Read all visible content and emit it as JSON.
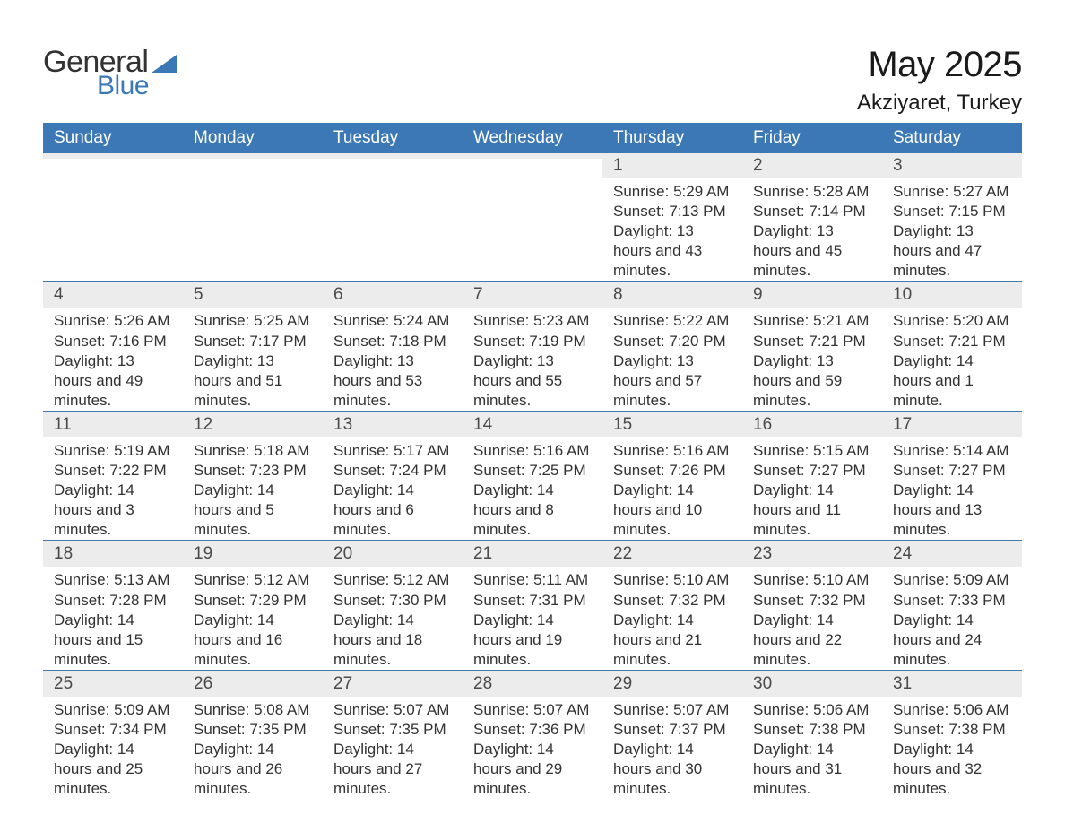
{
  "logo": {
    "word1": "General",
    "word2": "Blue"
  },
  "header": {
    "title": "May 2025",
    "location": "Akziyaret, Turkey"
  },
  "colors": {
    "header_bg": "#3b78b5",
    "row_border": "#4179b0",
    "daynum_bg": "#ececec",
    "text": "#323232"
  },
  "weekdays": [
    "Sunday",
    "Monday",
    "Tuesday",
    "Wednesday",
    "Thursday",
    "Friday",
    "Saturday"
  ],
  "weeks": [
    [
      {
        "n": "",
        "s": "",
        "t": "",
        "d": ""
      },
      {
        "n": "",
        "s": "",
        "t": "",
        "d": ""
      },
      {
        "n": "",
        "s": "",
        "t": "",
        "d": ""
      },
      {
        "n": "",
        "s": "",
        "t": "",
        "d": ""
      },
      {
        "n": "1",
        "s": "Sunrise: 5:29 AM",
        "t": "Sunset: 7:13 PM",
        "d": "Daylight: 13 hours and 43 minutes."
      },
      {
        "n": "2",
        "s": "Sunrise: 5:28 AM",
        "t": "Sunset: 7:14 PM",
        "d": "Daylight: 13 hours and 45 minutes."
      },
      {
        "n": "3",
        "s": "Sunrise: 5:27 AM",
        "t": "Sunset: 7:15 PM",
        "d": "Daylight: 13 hours and 47 minutes."
      }
    ],
    [
      {
        "n": "4",
        "s": "Sunrise: 5:26 AM",
        "t": "Sunset: 7:16 PM",
        "d": "Daylight: 13 hours and 49 minutes."
      },
      {
        "n": "5",
        "s": "Sunrise: 5:25 AM",
        "t": "Sunset: 7:17 PM",
        "d": "Daylight: 13 hours and 51 minutes."
      },
      {
        "n": "6",
        "s": "Sunrise: 5:24 AM",
        "t": "Sunset: 7:18 PM",
        "d": "Daylight: 13 hours and 53 minutes."
      },
      {
        "n": "7",
        "s": "Sunrise: 5:23 AM",
        "t": "Sunset: 7:19 PM",
        "d": "Daylight: 13 hours and 55 minutes."
      },
      {
        "n": "8",
        "s": "Sunrise: 5:22 AM",
        "t": "Sunset: 7:20 PM",
        "d": "Daylight: 13 hours and 57 minutes."
      },
      {
        "n": "9",
        "s": "Sunrise: 5:21 AM",
        "t": "Sunset: 7:21 PM",
        "d": "Daylight: 13 hours and 59 minutes."
      },
      {
        "n": "10",
        "s": "Sunrise: 5:20 AM",
        "t": "Sunset: 7:21 PM",
        "d": "Daylight: 14 hours and 1 minute."
      }
    ],
    [
      {
        "n": "11",
        "s": "Sunrise: 5:19 AM",
        "t": "Sunset: 7:22 PM",
        "d": "Daylight: 14 hours and 3 minutes."
      },
      {
        "n": "12",
        "s": "Sunrise: 5:18 AM",
        "t": "Sunset: 7:23 PM",
        "d": "Daylight: 14 hours and 5 minutes."
      },
      {
        "n": "13",
        "s": "Sunrise: 5:17 AM",
        "t": "Sunset: 7:24 PM",
        "d": "Daylight: 14 hours and 6 minutes."
      },
      {
        "n": "14",
        "s": "Sunrise: 5:16 AM",
        "t": "Sunset: 7:25 PM",
        "d": "Daylight: 14 hours and 8 minutes."
      },
      {
        "n": "15",
        "s": "Sunrise: 5:16 AM",
        "t": "Sunset: 7:26 PM",
        "d": "Daylight: 14 hours and 10 minutes."
      },
      {
        "n": "16",
        "s": "Sunrise: 5:15 AM",
        "t": "Sunset: 7:27 PM",
        "d": "Daylight: 14 hours and 11 minutes."
      },
      {
        "n": "17",
        "s": "Sunrise: 5:14 AM",
        "t": "Sunset: 7:27 PM",
        "d": "Daylight: 14 hours and 13 minutes."
      }
    ],
    [
      {
        "n": "18",
        "s": "Sunrise: 5:13 AM",
        "t": "Sunset: 7:28 PM",
        "d": "Daylight: 14 hours and 15 minutes."
      },
      {
        "n": "19",
        "s": "Sunrise: 5:12 AM",
        "t": "Sunset: 7:29 PM",
        "d": "Daylight: 14 hours and 16 minutes."
      },
      {
        "n": "20",
        "s": "Sunrise: 5:12 AM",
        "t": "Sunset: 7:30 PM",
        "d": "Daylight: 14 hours and 18 minutes."
      },
      {
        "n": "21",
        "s": "Sunrise: 5:11 AM",
        "t": "Sunset: 7:31 PM",
        "d": "Daylight: 14 hours and 19 minutes."
      },
      {
        "n": "22",
        "s": "Sunrise: 5:10 AM",
        "t": "Sunset: 7:32 PM",
        "d": "Daylight: 14 hours and 21 minutes."
      },
      {
        "n": "23",
        "s": "Sunrise: 5:10 AM",
        "t": "Sunset: 7:32 PM",
        "d": "Daylight: 14 hours and 22 minutes."
      },
      {
        "n": "24",
        "s": "Sunrise: 5:09 AM",
        "t": "Sunset: 7:33 PM",
        "d": "Daylight: 14 hours and 24 minutes."
      }
    ],
    [
      {
        "n": "25",
        "s": "Sunrise: 5:09 AM",
        "t": "Sunset: 7:34 PM",
        "d": "Daylight: 14 hours and 25 minutes."
      },
      {
        "n": "26",
        "s": "Sunrise: 5:08 AM",
        "t": "Sunset: 7:35 PM",
        "d": "Daylight: 14 hours and 26 minutes."
      },
      {
        "n": "27",
        "s": "Sunrise: 5:07 AM",
        "t": "Sunset: 7:35 PM",
        "d": "Daylight: 14 hours and 27 minutes."
      },
      {
        "n": "28",
        "s": "Sunrise: 5:07 AM",
        "t": "Sunset: 7:36 PM",
        "d": "Daylight: 14 hours and 29 minutes."
      },
      {
        "n": "29",
        "s": "Sunrise: 5:07 AM",
        "t": "Sunset: 7:37 PM",
        "d": "Daylight: 14 hours and 30 minutes."
      },
      {
        "n": "30",
        "s": "Sunrise: 5:06 AM",
        "t": "Sunset: 7:38 PM",
        "d": "Daylight: 14 hours and 31 minutes."
      },
      {
        "n": "31",
        "s": "Sunrise: 5:06 AM",
        "t": "Sunset: 7:38 PM",
        "d": "Daylight: 14 hours and 32 minutes."
      }
    ]
  ]
}
